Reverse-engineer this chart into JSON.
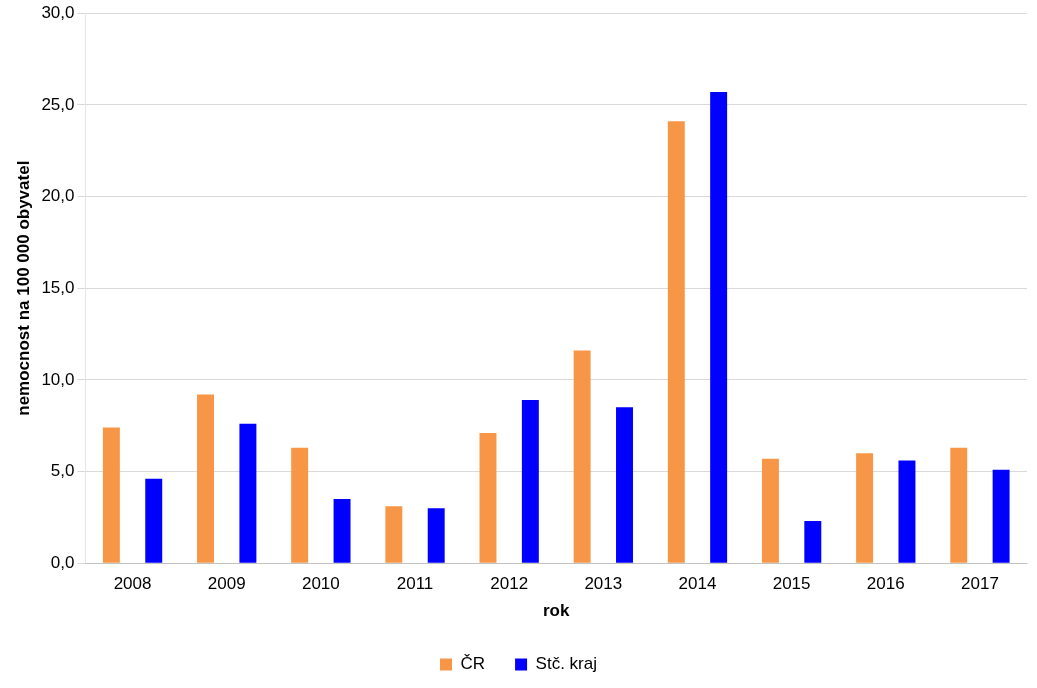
{
  "chart_data": {
    "type": "bar",
    "xlabel": "rok",
    "ylabel": "nemocnost na 100 000 obyvatel",
    "categories": [
      "2008",
      "2009",
      "2010",
      "2011",
      "2012",
      "2013",
      "2014",
      "2015",
      "2016",
      "2017"
    ],
    "series": [
      {
        "name": "ČR",
        "color": "#f79646",
        "values": [
          7.4,
          9.2,
          6.3,
          3.1,
          7.1,
          11.6,
          24.1,
          5.7,
          6.0,
          6.3
        ]
      },
      {
        "name": "Stč. kraj",
        "color": "#0000ff",
        "values": [
          4.6,
          7.6,
          3.5,
          3.0,
          8.9,
          8.5,
          25.7,
          2.3,
          5.6,
          5.1
        ]
      }
    ],
    "ylim": [
      0,
      30
    ],
    "yticks": [
      {
        "value": 0,
        "label": "0,0"
      },
      {
        "value": 5,
        "label": "5,0"
      },
      {
        "value": 10,
        "label": "10,0"
      },
      {
        "value": 15,
        "label": "15,0"
      },
      {
        "value": 20,
        "label": "20,0"
      },
      {
        "value": 25,
        "label": "25,0"
      },
      {
        "value": 30,
        "label": "30,0"
      }
    ],
    "grid": "y",
    "legend": "bottom"
  }
}
